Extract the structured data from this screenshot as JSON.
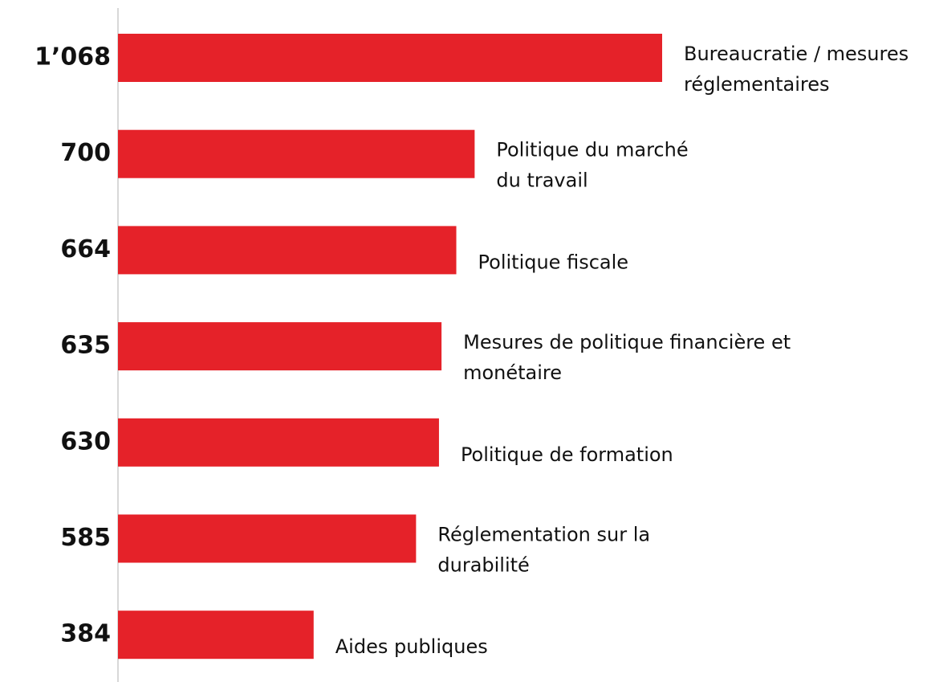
{
  "chart_data": {
    "type": "hbar",
    "categories": [
      "Bureaucratie / mesures\nréglementaires",
      "Politique du marché\ndu travail",
      "Politique fiscale",
      "Mesures de politique financière et\nmonétaire",
      "Politique de formation",
      "Réglementation sur la\ndurabilité",
      "Aides publiques"
    ],
    "values": [
      1068,
      700,
      664,
      635,
      630,
      585,
      384
    ],
    "value_labels": [
      "1’068",
      "700",
      "664",
      "635",
      "630",
      "585",
      "384"
    ],
    "color": "#e52229"
  }
}
